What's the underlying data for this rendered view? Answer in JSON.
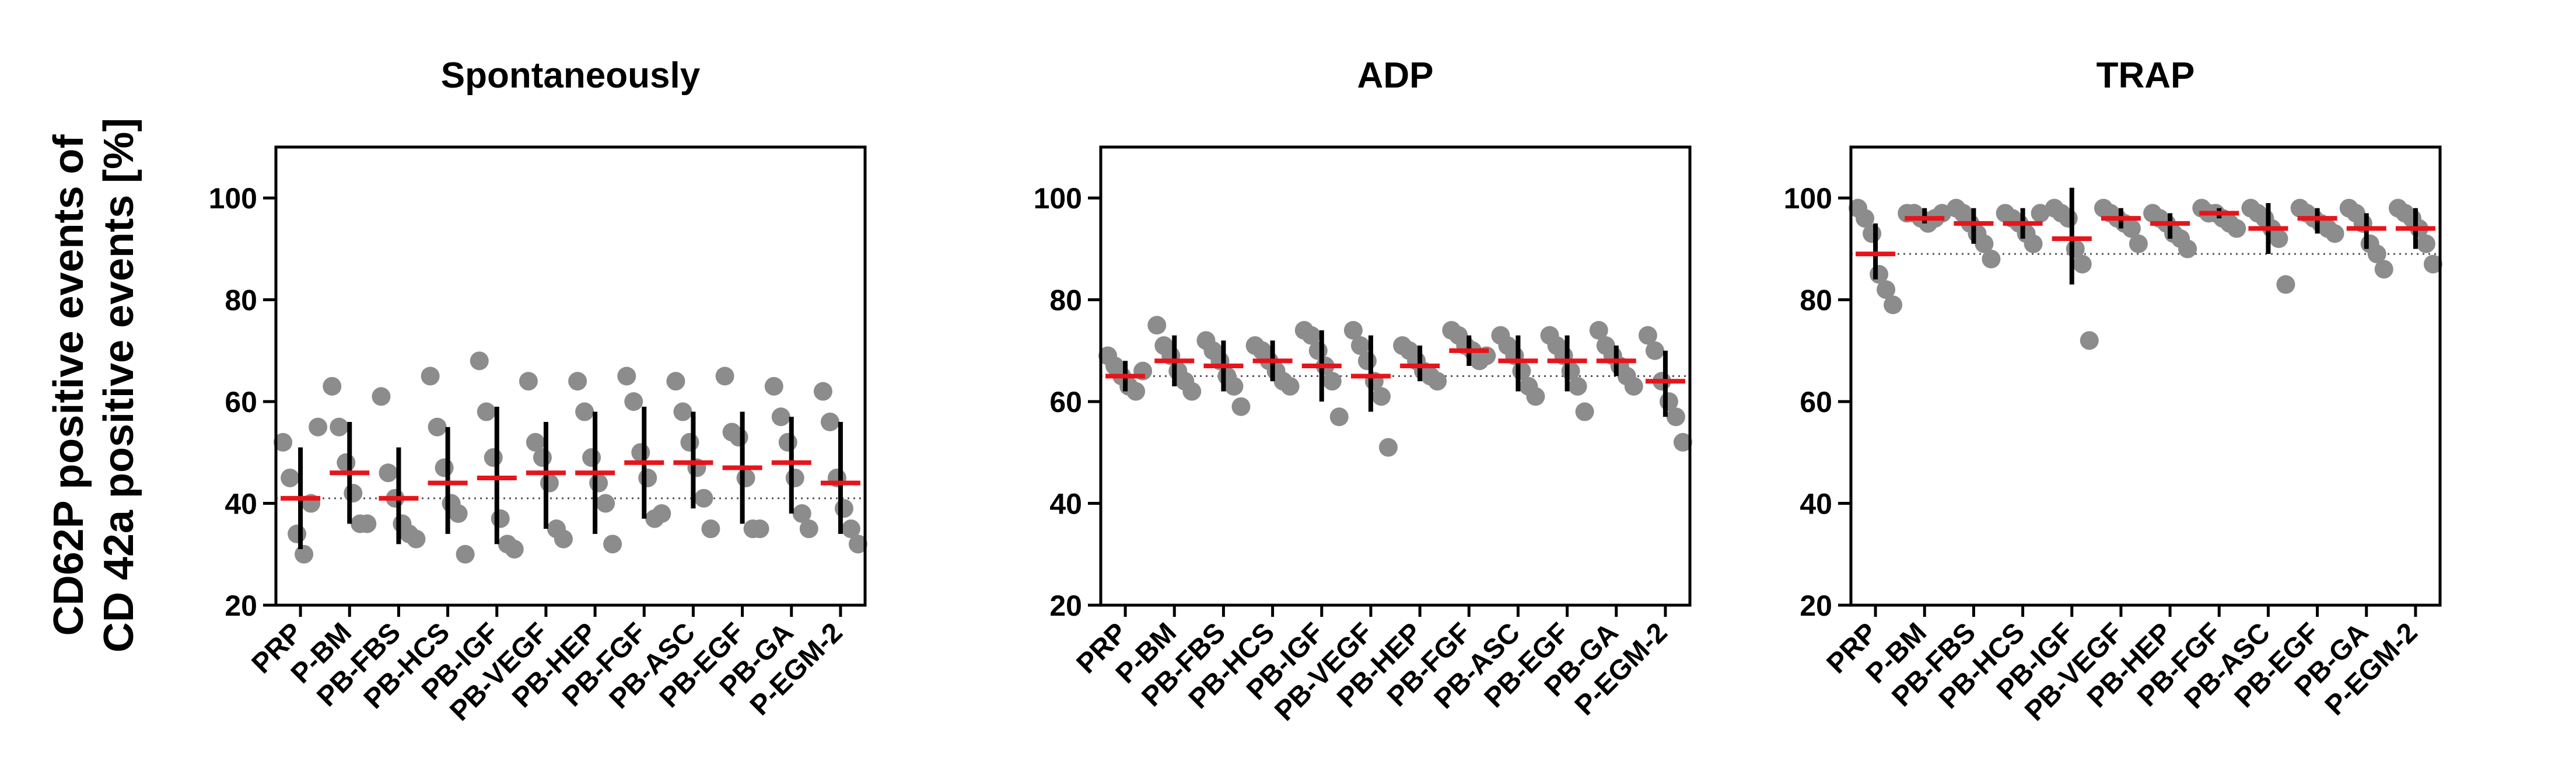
{
  "figure": {
    "ylabel_line1": "CD62P positive events of",
    "ylabel_line2": "CD 42a positive events [%]"
  },
  "colors": {
    "point": "#8c8c8c",
    "mean": "#e8141b",
    "sd": "#000000",
    "axis": "#000000",
    "reference": "#555555"
  },
  "chart_data": [
    {
      "type": "scatter",
      "title": "Spontaneously",
      "ylim": [
        20,
        110
      ],
      "yticks": [
        20,
        40,
        60,
        80,
        100
      ],
      "reference_line": 41,
      "categories": [
        "PRP",
        "P-BM",
        "PB-FBS",
        "PB-HCS",
        "PB-IGF",
        "PB-VEGF",
        "PB-HEP",
        "PB-FGF",
        "PB-ASC",
        "PB-EGF",
        "PB-GA",
        "P-EGM-2"
      ],
      "means": [
        41,
        46,
        41,
        44,
        45,
        46,
        46,
        48,
        48,
        47,
        48,
        44
      ],
      "sd": [
        [
          31,
          51
        ],
        [
          36,
          56
        ],
        [
          32,
          51
        ],
        [
          34,
          55
        ],
        [
          32,
          59
        ],
        [
          35,
          56
        ],
        [
          34,
          58
        ],
        [
          37,
          59
        ],
        [
          39,
          58
        ],
        [
          36,
          58
        ],
        [
          38,
          57
        ],
        [
          34,
          56
        ]
      ],
      "points": [
        [
          52,
          45,
          34,
          30,
          40,
          55
        ],
        [
          63,
          55,
          48,
          42,
          36,
          36
        ],
        [
          61,
          46,
          41,
          36,
          34,
          33
        ],
        [
          65,
          55,
          47,
          40,
          38,
          30
        ],
        [
          68,
          58,
          49,
          37,
          32,
          31
        ],
        [
          64,
          52,
          49,
          44,
          35,
          33
        ],
        [
          64,
          58,
          49,
          44,
          40,
          32
        ],
        [
          65,
          60,
          50,
          45,
          37,
          38
        ],
        [
          64,
          58,
          52,
          47,
          41,
          35
        ],
        [
          65,
          54,
          53,
          45,
          35,
          35
        ],
        [
          63,
          57,
          52,
          45,
          38,
          35
        ],
        [
          62,
          56,
          45,
          39,
          35,
          32
        ]
      ]
    },
    {
      "type": "scatter",
      "title": "ADP",
      "ylim": [
        20,
        110
      ],
      "yticks": [
        20,
        40,
        60,
        80,
        100
      ],
      "reference_line": 65,
      "categories": [
        "PRP",
        "P-BM",
        "PB-FBS",
        "PB-HCS",
        "PB-IGF",
        "PB-VEGF",
        "PB-HEP",
        "PB-FGF",
        "PB-ASC",
        "PB-EGF",
        "PB-GA",
        "P-EGM-2"
      ],
      "means": [
        65,
        68,
        67,
        68,
        67,
        65,
        67,
        70,
        68,
        68,
        68,
        64
      ],
      "sd": [
        [
          62,
          68
        ],
        [
          63,
          73
        ],
        [
          62,
          72
        ],
        [
          64,
          72
        ],
        [
          60,
          74
        ],
        [
          58,
          73
        ],
        [
          64,
          71
        ],
        [
          67,
          73
        ],
        [
          62,
          73
        ],
        [
          62,
          73
        ],
        [
          65,
          71
        ],
        [
          57,
          70
        ]
      ],
      "points": [
        [
          69,
          67,
          65,
          63,
          62,
          66
        ],
        [
          75,
          71,
          69,
          66,
          64,
          62
        ],
        [
          72,
          70,
          68,
          65,
          63,
          59
        ],
        [
          71,
          70,
          68,
          66,
          64,
          63
        ],
        [
          74,
          73,
          70,
          67,
          64,
          57
        ],
        [
          74,
          71,
          68,
          64,
          61,
          51
        ],
        [
          71,
          70,
          68,
          66,
          65,
          64
        ],
        [
          74,
          73,
          71,
          70,
          68,
          69
        ],
        [
          73,
          71,
          69,
          66,
          63,
          61
        ],
        [
          73,
          71,
          69,
          66,
          63,
          58
        ],
        [
          74,
          71,
          69,
          67,
          65,
          63
        ],
        [
          73,
          70,
          64,
          60,
          57,
          52
        ]
      ]
    },
    {
      "type": "scatter",
      "title": "TRAP",
      "ylim": [
        20,
        110
      ],
      "yticks": [
        20,
        40,
        60,
        80,
        100
      ],
      "reference_line": 89,
      "categories": [
        "PRP",
        "P-BM",
        "PB-FBS",
        "PB-HCS",
        "PB-IGF",
        "PB-VEGF",
        "PB-HEP",
        "PB-FGF",
        "PB-ASC",
        "PB-EGF",
        "PB-GA",
        "P-EGM-2"
      ],
      "means": [
        89,
        96,
        95,
        95,
        92,
        96,
        95,
        97,
        94,
        96,
        94,
        94
      ],
      "sd": [
        [
          84,
          95
        ],
        [
          95,
          98
        ],
        [
          91,
          98
        ],
        [
          92,
          98
        ],
        [
          83,
          102
        ],
        [
          94,
          98
        ],
        [
          92,
          97
        ],
        [
          96,
          98
        ],
        [
          89,
          99
        ],
        [
          93,
          98
        ],
        [
          90,
          97
        ],
        [
          90,
          98
        ]
      ],
      "points": [
        [
          98,
          96,
          93,
          85,
          82,
          79
        ],
        [
          97,
          97,
          96,
          95,
          96,
          97
        ],
        [
          98,
          97,
          95,
          93,
          91,
          88
        ],
        [
          97,
          96,
          95,
          93,
          91,
          97
        ],
        [
          98,
          97,
          96,
          90,
          87,
          72
        ],
        [
          98,
          97,
          96,
          95,
          94,
          91
        ],
        [
          97,
          96,
          95,
          93,
          92,
          90
        ],
        [
          98,
          97,
          97,
          96,
          95,
          94
        ],
        [
          98,
          97,
          96,
          94,
          92,
          83
        ],
        [
          98,
          97,
          96,
          95,
          94,
          93
        ],
        [
          98,
          97,
          95,
          91,
          89,
          86
        ],
        [
          98,
          97,
          96,
          94,
          91,
          87
        ]
      ]
    }
  ]
}
